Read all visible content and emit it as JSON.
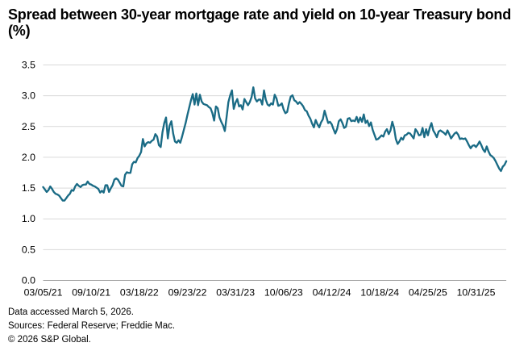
{
  "title": "Spread between 30-year mortgage rate and yield on 10-year Treasury bond (%)",
  "footer": {
    "accessed": "Data accessed March 5, 2026.",
    "sources": "Sources: Federal Reserve; Freddie Mac.",
    "copyright": "© 2026 S&P Global."
  },
  "colors": {
    "line": "#1A6B85",
    "grid": "#D9D9D9",
    "axis": "#A0A0A0",
    "text": "#000000",
    "background": "#FFFFFF"
  },
  "chart_data": {
    "type": "line",
    "title": "Spread between 30-year mortgage rate and yield on 10-year Treasury bond (%)",
    "xlabel": "",
    "ylabel": "(%)",
    "ylim": [
      0.0,
      3.5
    ],
    "y_tick_labels": [
      "3.5",
      "3.0",
      "2.5",
      "2.0",
      "1.5",
      "1.0",
      "0.5",
      "0.0"
    ],
    "y_tick_values": [
      3.5,
      3.0,
      2.5,
      2.0,
      1.5,
      1.0,
      0.5,
      0.0
    ],
    "x_tick_labels": [
      "03/05/21",
      "09/10/21",
      "03/18/22",
      "09/23/22",
      "03/31/23",
      "10/06/23",
      "04/12/24",
      "10/18/24",
      "04/25/25",
      "10/31/25"
    ],
    "x_ticks_every_n_points": 27,
    "frequency": "weekly",
    "legend": "none",
    "grid": "horizontal",
    "series": [
      {
        "name": "Spread between 30-year mortgage rate and yield on 10-year Treasury bond (%)",
        "values": [
          1.51,
          1.47,
          1.43,
          1.46,
          1.52,
          1.48,
          1.43,
          1.4,
          1.39,
          1.37,
          1.33,
          1.29,
          1.29,
          1.33,
          1.37,
          1.4,
          1.46,
          1.45,
          1.52,
          1.56,
          1.53,
          1.51,
          1.54,
          1.55,
          1.55,
          1.6,
          1.56,
          1.55,
          1.53,
          1.52,
          1.5,
          1.48,
          1.42,
          1.45,
          1.42,
          1.54,
          1.54,
          1.43,
          1.49,
          1.54,
          1.63,
          1.65,
          1.63,
          1.58,
          1.53,
          1.52,
          1.71,
          1.75,
          1.74,
          1.74,
          1.88,
          1.92,
          1.91,
          1.98,
          2.02,
          2.08,
          2.29,
          2.17,
          2.22,
          2.24,
          2.23,
          2.26,
          2.28,
          2.37,
          2.33,
          2.19,
          2.16,
          2.4,
          2.55,
          2.64,
          2.3,
          2.51,
          2.58,
          2.38,
          2.25,
          2.23,
          2.27,
          2.23,
          2.33,
          2.44,
          2.55,
          2.68,
          2.8,
          2.92,
          3.02,
          2.85,
          3.03,
          2.84,
          3.01,
          2.9,
          2.86,
          2.85,
          2.84,
          2.81,
          2.79,
          2.71,
          2.59,
          2.82,
          2.79,
          2.64,
          2.57,
          2.51,
          2.42,
          2.65,
          2.89,
          3.0,
          3.08,
          2.78,
          2.88,
          2.94,
          2.82,
          2.84,
          2.77,
          2.94,
          2.89,
          2.84,
          2.89,
          2.97,
          3.13,
          2.95,
          2.9,
          2.93,
          2.93,
          2.85,
          3.08,
          2.93,
          2.85,
          2.83,
          2.87,
          2.85,
          3.01,
          2.95,
          2.83,
          2.84,
          2.87,
          2.77,
          2.71,
          2.73,
          2.87,
          2.98,
          3.0,
          2.92,
          2.9,
          2.86,
          2.89,
          2.86,
          2.82,
          2.76,
          2.74,
          2.67,
          2.62,
          2.54,
          2.48,
          2.6,
          2.53,
          2.48,
          2.56,
          2.61,
          2.75,
          2.65,
          2.55,
          2.57,
          2.53,
          2.45,
          2.38,
          2.45,
          2.58,
          2.61,
          2.55,
          2.47,
          2.49,
          2.62,
          2.63,
          2.58,
          2.59,
          2.58,
          2.65,
          2.56,
          2.64,
          2.57,
          2.69,
          2.55,
          2.59,
          2.5,
          2.56,
          2.44,
          2.36,
          2.28,
          2.29,
          2.32,
          2.35,
          2.33,
          2.41,
          2.45,
          2.37,
          2.43,
          2.57,
          2.47,
          2.29,
          2.21,
          2.25,
          2.31,
          2.28,
          2.35,
          2.36,
          2.39,
          2.38,
          2.34,
          2.3,
          2.45,
          2.41,
          2.35,
          2.36,
          2.47,
          2.32,
          2.45,
          2.35,
          2.47,
          2.55,
          2.43,
          2.38,
          2.32,
          2.41,
          2.43,
          2.41,
          2.39,
          2.36,
          2.43,
          2.37,
          2.3,
          2.34,
          2.38,
          2.4,
          2.36,
          2.29,
          2.3,
          2.29,
          2.3,
          2.25,
          2.19,
          2.14,
          2.18,
          2.19,
          2.16,
          2.2,
          2.25,
          2.19,
          2.12,
          2.08,
          2.17,
          2.09,
          2.03,
          2.01,
          1.98,
          1.93,
          1.87,
          1.81,
          1.77,
          1.84,
          1.87,
          1.93
        ]
      }
    ]
  }
}
